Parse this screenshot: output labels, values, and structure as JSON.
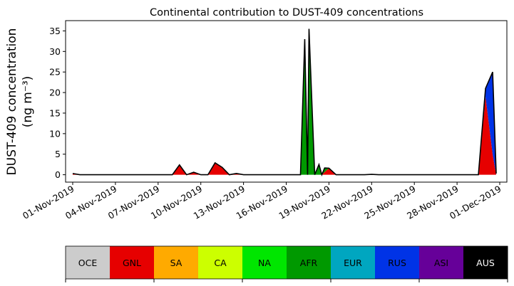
{
  "chart_data": {
    "type": "area",
    "title": "Continental contribution to DUST-409 concentrations",
    "ylabel_line1": "DUST-409 concentration",
    "ylabel_line2": "(ng m⁻³)",
    "xlabel": "",
    "ylim": [
      -1.8,
      37.5
    ],
    "y_ticks": [
      0,
      5,
      10,
      15,
      20,
      25,
      30,
      35
    ],
    "x_range_days": [
      -0.5,
      30.5
    ],
    "x_ticks": [
      {
        "day": 0,
        "label": "01-Nov-2019"
      },
      {
        "day": 3,
        "label": "04-Nov-2019"
      },
      {
        "day": 6,
        "label": "07-Nov-2019"
      },
      {
        "day": 9,
        "label": "10-Nov-2019"
      },
      {
        "day": 12,
        "label": "13-Nov-2019"
      },
      {
        "day": 15,
        "label": "16-Nov-2019"
      },
      {
        "day": 18,
        "label": "19-Nov-2019"
      },
      {
        "day": 21,
        "label": "22-Nov-2019"
      },
      {
        "day": 24,
        "label": "25-Nov-2019"
      },
      {
        "day": 27,
        "label": "28-Nov-2019"
      },
      {
        "day": 30,
        "label": "01-Dec-2019"
      }
    ],
    "x": [
      0,
      0.5,
      1,
      1.5,
      2,
      2.5,
      3,
      3.5,
      4,
      4.5,
      5,
      5.5,
      6,
      6.5,
      7,
      7.5,
      8,
      8.5,
      9,
      9.5,
      10,
      10.5,
      11,
      11.5,
      12,
      12.5,
      13,
      13.5,
      14,
      14.5,
      15,
      15.5,
      16,
      16.5,
      17,
      17.5,
      18,
      18.5,
      19,
      19.5,
      20,
      20.5,
      21,
      21.5,
      22,
      22.5,
      23,
      23.5,
      24,
      24.5,
      25,
      25.5,
      26,
      26.5,
      27,
      27.5,
      28,
      28.5,
      29,
      29.5,
      29.75
    ],
    "series": [
      {
        "name": "OCE",
        "color": "#cccccc",
        "values": [
          0,
          0,
          0,
          0,
          0,
          0,
          0,
          0,
          0,
          0,
          0,
          0,
          0,
          0,
          0,
          0,
          0,
          0,
          0,
          0,
          0,
          0,
          0,
          0,
          0,
          0,
          0,
          0,
          0,
          0,
          0,
          0,
          0,
          0,
          0,
          0,
          0,
          0,
          0,
          0,
          0,
          0,
          0,
          0,
          0,
          0,
          0,
          0,
          0,
          0,
          0,
          0,
          0,
          0,
          0,
          0,
          0,
          0,
          0,
          0,
          0
        ]
      },
      {
        "name": "GNL",
        "color": "#e60000",
        "values": [
          0.3,
          0,
          0,
          0,
          0,
          0,
          0,
          0,
          0,
          0,
          0,
          0,
          0,
          0,
          0,
          2.4,
          0,
          0.6,
          0,
          0,
          2.9,
          1.8,
          0,
          0.2,
          0,
          0,
          0,
          0,
          0,
          0,
          0,
          0,
          0,
          0,
          0,
          0,
          1.6,
          0,
          0,
          0,
          0,
          0,
          0,
          0,
          0,
          0,
          0,
          0,
          0,
          0,
          0,
          0,
          0,
          0,
          0,
          0,
          0,
          0,
          19.0,
          5.0,
          0
        ]
      },
      {
        "name": "SA",
        "color": "#ffaa00",
        "values": [
          0,
          0,
          0,
          0,
          0,
          0,
          0,
          0,
          0,
          0,
          0,
          0,
          0,
          0,
          0,
          0,
          0,
          0,
          0,
          0,
          0,
          0,
          0,
          0,
          0,
          0,
          0,
          0,
          0,
          0,
          0,
          0,
          0,
          0,
          0,
          0,
          0,
          0,
          0,
          0,
          0,
          0,
          0,
          0,
          0,
          0,
          0,
          0,
          0,
          0,
          0,
          0,
          0,
          0,
          0,
          0,
          0,
          0,
          0,
          0,
          0
        ]
      },
      {
        "name": "CA",
        "color": "#ccff00",
        "values": [
          0,
          0,
          0,
          0,
          0,
          0,
          0,
          0,
          0,
          0,
          0,
          0,
          0,
          0,
          0,
          0,
          0,
          0,
          0,
          0,
          0,
          0,
          0,
          0,
          0,
          0,
          0,
          0,
          0,
          0,
          0,
          0,
          0,
          0,
          0,
          0,
          0,
          0,
          0,
          0,
          0,
          0,
          0,
          0,
          0,
          0,
          0,
          0,
          0,
          0,
          0,
          0,
          0,
          0,
          0,
          0,
          0,
          0,
          0,
          0,
          0
        ]
      },
      {
        "name": "NA",
        "color": "#00e600",
        "values": [
          0,
          0,
          0,
          0,
          0,
          0,
          0,
          0,
          0,
          0,
          0,
          0,
          0,
          0,
          0,
          0,
          0,
          0,
          0,
          0,
          0,
          0,
          0,
          0,
          0,
          0,
          0,
          0,
          0,
          0,
          0,
          0,
          0,
          0,
          0,
          0,
          0,
          0,
          0,
          0,
          0,
          0,
          0,
          0,
          0,
          0,
          0,
          0,
          0,
          0,
          0,
          0,
          0,
          0,
          0,
          0,
          0,
          0,
          0,
          0,
          0
        ]
      },
      {
        "name": "AFR",
        "color": "#009900",
        "values": [
          0,
          0,
          0,
          0,
          0,
          0,
          0,
          0,
          0,
          0,
          0,
          0,
          0,
          0,
          0,
          0,
          0,
          0,
          0,
          0,
          0,
          0,
          0,
          0.1,
          0,
          0,
          0,
          0,
          0,
          0,
          0,
          0,
          0,
          0,
          0.2,
          0,
          0,
          0,
          0,
          0,
          0,
          0,
          0.1,
          0,
          0,
          0,
          0,
          0,
          0,
          0,
          0,
          0,
          0,
          0,
          0,
          0,
          0,
          0,
          0,
          0,
          0
        ]
      },
      {
        "name": "EUR",
        "color": "#00a6c0",
        "values": [
          0,
          0,
          0,
          0,
          0,
          0,
          0,
          0,
          0,
          0,
          0,
          0,
          0,
          0,
          0,
          0,
          0,
          0,
          0,
          0,
          0,
          0,
          0,
          0,
          0,
          0,
          0,
          0,
          0,
          0,
          0,
          0,
          0,
          0,
          0,
          0,
          0,
          0,
          0,
          0,
          0,
          0,
          0,
          0,
          0,
          0,
          0,
          0,
          0,
          0,
          0,
          0,
          0,
          0,
          0,
          0,
          0,
          0,
          0,
          0,
          0
        ]
      },
      {
        "name": "RUS",
        "color": "#0033e6",
        "values": [
          0,
          0,
          0,
          0,
          0,
          0,
          0,
          0,
          0,
          0,
          0,
          0,
          0,
          0,
          0,
          0,
          0,
          0,
          0,
          0,
          0,
          0,
          0,
          0,
          0,
          0,
          0,
          0,
          0,
          0,
          0,
          0,
          0,
          0,
          0,
          0,
          0,
          0,
          0,
          0,
          0,
          0,
          0,
          0,
          0,
          0,
          0,
          0,
          0,
          0,
          0,
          0,
          0,
          0,
          0,
          0,
          0,
          0,
          2.0,
          20.0,
          0.3
        ]
      },
      {
        "name": "ASI",
        "color": "#660099",
        "values": [
          0,
          0,
          0,
          0,
          0,
          0,
          0,
          0,
          0,
          0,
          0,
          0,
          0,
          0,
          0,
          0,
          0,
          0,
          0,
          0,
          0,
          0,
          0,
          0,
          0,
          0,
          0,
          0,
          0,
          0,
          0,
          0,
          0,
          0,
          0,
          0,
          0,
          0,
          0,
          0,
          0,
          0,
          0,
          0,
          0,
          0,
          0,
          0,
          0,
          0,
          0,
          0,
          0,
          0,
          0,
          0,
          0,
          0,
          0,
          0,
          0
        ]
      },
      {
        "name": "AUS",
        "color": "#000000",
        "values": [
          0,
          0,
          0,
          0,
          0,
          0,
          0,
          0,
          0,
          0,
          0,
          0,
          0,
          0,
          0,
          0,
          0,
          0,
          0,
          0,
          0,
          0,
          0,
          0,
          0,
          0,
          0,
          0,
          0,
          0,
          0,
          0,
          0,
          0,
          0,
          0,
          0,
          0,
          0,
          0,
          0,
          0,
          0,
          0,
          0,
          0,
          0,
          0,
          0,
          0,
          0,
          0,
          0,
          0,
          0,
          0,
          0,
          0,
          0,
          0,
          0
        ]
      }
    ],
    "afr_peak_override": {
      "16.3": 33.0,
      "16.6": 35.5,
      "17.0": 9.0,
      "17.3": 2.5,
      "17.7": 1.0
    },
    "legend": [
      {
        "name": "OCE",
        "color": "#cccccc",
        "text_color": "#000000"
      },
      {
        "name": "GNL",
        "color": "#e60000",
        "text_color": "#000000"
      },
      {
        "name": "SA",
        "color": "#ffaa00",
        "text_color": "#000000"
      },
      {
        "name": "CA",
        "color": "#ccff00",
        "text_color": "#000000"
      },
      {
        "name": "NA",
        "color": "#00e600",
        "text_color": "#000000"
      },
      {
        "name": "AFR",
        "color": "#009900",
        "text_color": "#000000"
      },
      {
        "name": "EUR",
        "color": "#00a6c0",
        "text_color": "#000000"
      },
      {
        "name": "RUS",
        "color": "#0033e6",
        "text_color": "#000000"
      },
      {
        "name": "ASI",
        "color": "#660099",
        "text_color": "#000000"
      },
      {
        "name": "AUS",
        "color": "#000000",
        "text_color": "#ffffff"
      }
    ],
    "legend_placement": "bottom",
    "grid": false
  }
}
